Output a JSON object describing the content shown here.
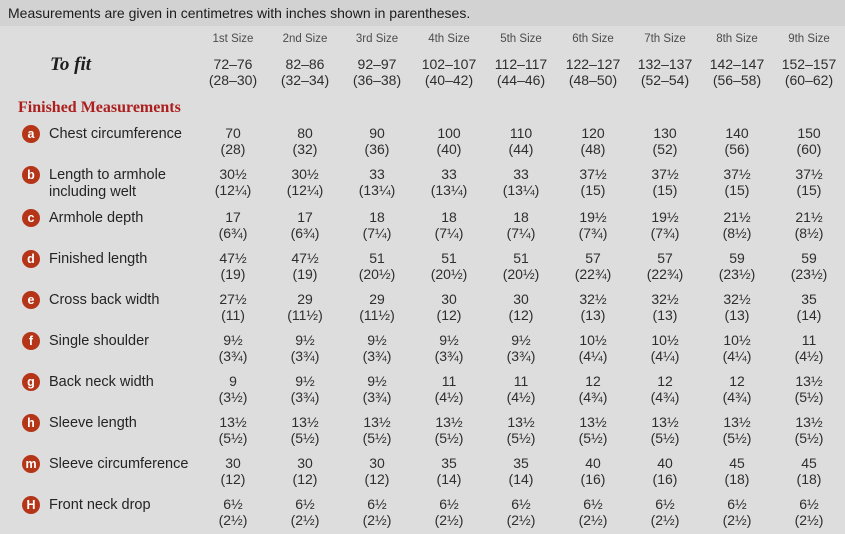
{
  "note": "Measurements are given in centimetres with inches shown in parentheses.",
  "section_title": "Finished Measurements",
  "colors": {
    "accent_red": "#b53519",
    "title_red": "#ad1f1f",
    "background": "#dddddd",
    "note_bar": "#d2d2d2"
  },
  "table": {
    "sizes": [
      "1st Size",
      "2nd Size",
      "3rd Size",
      "4th Size",
      "5th Size",
      "6th Size",
      "7th Size",
      "8th Size",
      "9th Size"
    ],
    "to_fit": {
      "label": "To fit",
      "values": [
        {
          "cm": "72–76",
          "in": "(28–30)"
        },
        {
          "cm": "82–86",
          "in": "(32–34)"
        },
        {
          "cm": "92–97",
          "in": "(36–38)"
        },
        {
          "cm": "102–107",
          "in": "(40–42)"
        },
        {
          "cm": "112–117",
          "in": "(44–46)"
        },
        {
          "cm": "122–127",
          "in": "(48–50)"
        },
        {
          "cm": "132–137",
          "in": "(52–54)"
        },
        {
          "cm": "142–147",
          "in": "(56–58)"
        },
        {
          "cm": "152–157",
          "in": "(60–62)"
        }
      ]
    },
    "rows": [
      {
        "badge": "a",
        "label": "Chest circumference",
        "values": [
          {
            "cm": "70",
            "in": "(28)"
          },
          {
            "cm": "80",
            "in": "(32)"
          },
          {
            "cm": "90",
            "in": "(36)"
          },
          {
            "cm": "100",
            "in": "(40)"
          },
          {
            "cm": "110",
            "in": "(44)"
          },
          {
            "cm": "120",
            "in": "(48)"
          },
          {
            "cm": "130",
            "in": "(52)"
          },
          {
            "cm": "140",
            "in": "(56)"
          },
          {
            "cm": "150",
            "in": "(60)"
          }
        ]
      },
      {
        "badge": "b",
        "label": "Length to armhole including welt",
        "values": [
          {
            "cm": "30½",
            "in": "(12¼)"
          },
          {
            "cm": "30½",
            "in": "(12¼)"
          },
          {
            "cm": "33",
            "in": "(13¼)"
          },
          {
            "cm": "33",
            "in": "(13¼)"
          },
          {
            "cm": "33",
            "in": "(13¼)"
          },
          {
            "cm": "37½",
            "in": "(15)"
          },
          {
            "cm": "37½",
            "in": "(15)"
          },
          {
            "cm": "37½",
            "in": "(15)"
          },
          {
            "cm": "37½",
            "in": "(15)"
          }
        ]
      },
      {
        "badge": "c",
        "label": "Armhole depth",
        "values": [
          {
            "cm": "17",
            "in": "(6¾)"
          },
          {
            "cm": "17",
            "in": "(6¾)"
          },
          {
            "cm": "18",
            "in": "(7¼)"
          },
          {
            "cm": "18",
            "in": "(7¼)"
          },
          {
            "cm": "18",
            "in": "(7¼)"
          },
          {
            "cm": "19½",
            "in": "(7¾)"
          },
          {
            "cm": "19½",
            "in": "(7¾)"
          },
          {
            "cm": "21½",
            "in": "(8½)"
          },
          {
            "cm": "21½",
            "in": "(8½)"
          }
        ]
      },
      {
        "badge": "d",
        "label": "Finished length",
        "values": [
          {
            "cm": "47½",
            "in": "(19)"
          },
          {
            "cm": "47½",
            "in": "(19)"
          },
          {
            "cm": "51",
            "in": "(20½)"
          },
          {
            "cm": "51",
            "in": "(20½)"
          },
          {
            "cm": "51",
            "in": "(20½)"
          },
          {
            "cm": "57",
            "in": "(22¾)"
          },
          {
            "cm": "57",
            "in": "(22¾)"
          },
          {
            "cm": "59",
            "in": "(23½)"
          },
          {
            "cm": "59",
            "in": "(23½)"
          }
        ]
      },
      {
        "badge": "e",
        "label": "Cross back width",
        "values": [
          {
            "cm": "27½",
            "in": "(11)"
          },
          {
            "cm": "29",
            "in": "(11½)"
          },
          {
            "cm": "29",
            "in": "(11½)"
          },
          {
            "cm": "30",
            "in": "(12)"
          },
          {
            "cm": "30",
            "in": "(12)"
          },
          {
            "cm": "32½",
            "in": "(13)"
          },
          {
            "cm": "32½",
            "in": "(13)"
          },
          {
            "cm": "32½",
            "in": "(13)"
          },
          {
            "cm": "35",
            "in": "(14)"
          }
        ]
      },
      {
        "badge": "f",
        "label": "Single shoulder",
        "values": [
          {
            "cm": "9½",
            "in": "(3¾)"
          },
          {
            "cm": "9½",
            "in": "(3¾)"
          },
          {
            "cm": "9½",
            "in": "(3¾)"
          },
          {
            "cm": "9½",
            "in": "(3¾)"
          },
          {
            "cm": "9½",
            "in": "(3¾)"
          },
          {
            "cm": "10½",
            "in": "(4¼)"
          },
          {
            "cm": "10½",
            "in": "(4¼)"
          },
          {
            "cm": "10½",
            "in": "(4¼)"
          },
          {
            "cm": "11",
            "in": "(4½)"
          }
        ]
      },
      {
        "badge": "g",
        "label": "Back neck width",
        "values": [
          {
            "cm": "9",
            "in": "(3½)"
          },
          {
            "cm": "9½",
            "in": "(3¾)"
          },
          {
            "cm": "9½",
            "in": "(3¾)"
          },
          {
            "cm": "11",
            "in": "(4½)"
          },
          {
            "cm": "11",
            "in": "(4½)"
          },
          {
            "cm": "12",
            "in": "(4¾)"
          },
          {
            "cm": "12",
            "in": "(4¾)"
          },
          {
            "cm": "12",
            "in": "(4¾)"
          },
          {
            "cm": "13½",
            "in": "(5½)"
          }
        ]
      },
      {
        "badge": "h",
        "label": "Sleeve length",
        "values": [
          {
            "cm": "13½",
            "in": "(5½)"
          },
          {
            "cm": "13½",
            "in": "(5½)"
          },
          {
            "cm": "13½",
            "in": "(5½)"
          },
          {
            "cm": "13½",
            "in": "(5½)"
          },
          {
            "cm": "13½",
            "in": "(5½)"
          },
          {
            "cm": "13½",
            "in": "(5½)"
          },
          {
            "cm": "13½",
            "in": "(5½)"
          },
          {
            "cm": "13½",
            "in": "(5½)"
          },
          {
            "cm": "13½",
            "in": "(5½)"
          }
        ]
      },
      {
        "badge": "m",
        "label": "Sleeve circumference",
        "values": [
          {
            "cm": "30",
            "in": "(12)"
          },
          {
            "cm": "30",
            "in": "(12)"
          },
          {
            "cm": "30",
            "in": "(12)"
          },
          {
            "cm": "35",
            "in": "(14)"
          },
          {
            "cm": "35",
            "in": "(14)"
          },
          {
            "cm": "40",
            "in": "(16)"
          },
          {
            "cm": "40",
            "in": "(16)"
          },
          {
            "cm": "45",
            "in": "(18)"
          },
          {
            "cm": "45",
            "in": "(18)"
          }
        ]
      },
      {
        "badge": "H",
        "label": "Front neck drop",
        "values": [
          {
            "cm": "6½",
            "in": "(2½)"
          },
          {
            "cm": "6½",
            "in": "(2½)"
          },
          {
            "cm": "6½",
            "in": "(2½)"
          },
          {
            "cm": "6½",
            "in": "(2½)"
          },
          {
            "cm": "6½",
            "in": "(2½)"
          },
          {
            "cm": "6½",
            "in": "(2½)"
          },
          {
            "cm": "6½",
            "in": "(2½)"
          },
          {
            "cm": "6½",
            "in": "(2½)"
          },
          {
            "cm": "6½",
            "in": "(2½)"
          }
        ]
      }
    ]
  }
}
